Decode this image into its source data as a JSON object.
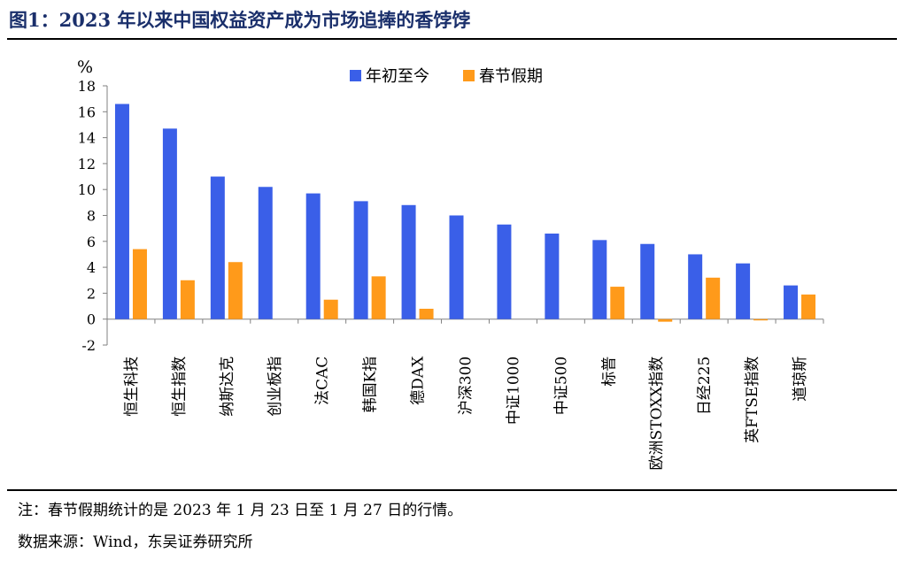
{
  "figure": {
    "title": "图1：2023 年以来中国权益资产成为市场追捧的香饽饽",
    "note": "注：春节假期统计的是 2023 年 1 月 23 日至 1 月 27 日的行情。",
    "source": "数据来源：Wind，东吴证券研究所"
  },
  "chart_data": {
    "type": "bar",
    "unit_label": "%",
    "categories": [
      "恒生科技",
      "恒生指数",
      "纳斯达克",
      "创业板指",
      "法CAC",
      "韩国K指",
      "德DAX",
      "沪深300",
      "中证1000",
      "中证500",
      "标普",
      "欧洲STOXX指数",
      "日经225",
      "英FTSE指数",
      "道琼斯"
    ],
    "series": [
      {
        "name": "年初至今",
        "color": "#3a5fe8",
        "values": [
          16.6,
          14.7,
          11.0,
          10.2,
          9.7,
          9.1,
          8.8,
          8.0,
          7.3,
          6.6,
          6.1,
          5.8,
          5.0,
          4.3,
          2.6
        ]
      },
      {
        "name": "春节假期",
        "color": "#ff9a1a",
        "values": [
          5.4,
          3.0,
          4.4,
          null,
          1.5,
          3.3,
          0.8,
          null,
          null,
          null,
          2.5,
          -0.2,
          3.2,
          -0.1,
          1.9
        ]
      }
    ],
    "ylim": [
      -2,
      18
    ],
    "yticks": [
      -2,
      0,
      2,
      4,
      6,
      8,
      10,
      12,
      14,
      16,
      18
    ],
    "grid": false,
    "legend_position": "top-center"
  }
}
